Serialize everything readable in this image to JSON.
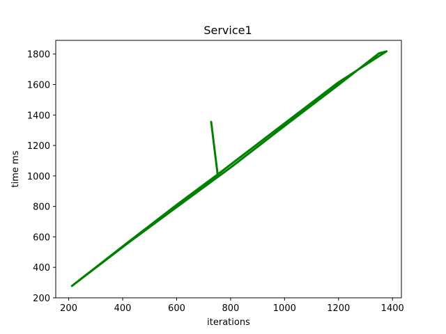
{
  "chart_data": {
    "type": "line",
    "title": "Service1",
    "xlabel": "iterations",
    "ylabel": "time ms",
    "xlim": [
      152,
      1433
    ],
    "ylim": [
      200,
      1890
    ],
    "x_ticks": [
      200,
      400,
      600,
      800,
      1000,
      1200,
      1400
    ],
    "y_ticks": [
      200,
      400,
      600,
      800,
      1000,
      1200,
      1400,
      1600,
      1800
    ],
    "grid": false,
    "series": [
      {
        "color": "#008000",
        "x": [
          212,
          420,
          600,
          752,
          728,
          752,
          1000,
          1200,
          1378,
          1350,
          1200,
          1000,
          800,
          600,
          420,
          212
        ],
        "y": [
          278,
          565,
          810,
          1010,
          1355,
          1010,
          1345,
          1615,
          1818,
          1805,
          1598,
          1328,
          1055,
          795,
          560,
          278
        ]
      }
    ]
  }
}
